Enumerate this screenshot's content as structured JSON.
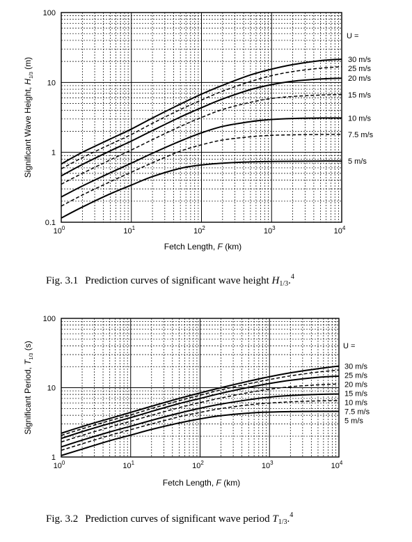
{
  "chart_data": [
    {
      "type": "line",
      "figure_label": "Fig. 3.1",
      "caption": {
        "text": "Prediction curves of significant wave height ",
        "symbol": "H",
        "subscript": "1/3",
        "suffix": ".",
        "superscript": "4"
      },
      "ylabel": {
        "text": "Significant Wave Height, ",
        "symbol": "H",
        "subscript": "1/3",
        "unit": " (m)"
      },
      "xlabel": {
        "text": "Fetch Length, ",
        "symbol": "F",
        "unit": " (km)"
      },
      "x_scale": "log",
      "y_scale": "log",
      "xlim": [
        1,
        10000
      ],
      "ylim": [
        0.1,
        100
      ],
      "x_tick_base": "10",
      "x_tick_exponents": [
        "0",
        "1",
        "2",
        "3",
        "4"
      ],
      "y_ticks": [
        {
          "value": 0.1,
          "label": "0.1"
        },
        {
          "value": 1,
          "label": "1"
        },
        {
          "value": 10,
          "label": "10"
        },
        {
          "value": 100,
          "label": "100"
        }
      ],
      "grid": true,
      "legend_header": "U =",
      "x": [
        1,
        2,
        5,
        10,
        20,
        50,
        100,
        200,
        500,
        1000,
        2000,
        5000,
        10000
      ],
      "series": [
        {
          "name": "30 m/s",
          "style": "solid",
          "values": [
            0.68,
            1.0,
            1.55,
            2.15,
            3.1,
            4.9,
            6.8,
            9.1,
            12.8,
            15.5,
            18.0,
            20.5,
            21.5
          ]
        },
        {
          "name": "25 m/s",
          "style": "dashed",
          "values": [
            0.58,
            0.84,
            1.3,
            1.8,
            2.6,
            4.1,
            5.6,
            7.5,
            10.3,
            12.5,
            14.3,
            16.0,
            16.8
          ]
        },
        {
          "name": "20 m/s",
          "style": "solid",
          "values": [
            0.46,
            0.67,
            1.05,
            1.45,
            2.05,
            3.2,
            4.35,
            5.8,
            7.9,
            9.3,
            10.4,
            11.2,
            11.5
          ]
        },
        {
          "name": "15 m/s",
          "style": "dashed",
          "values": [
            0.35,
            0.5,
            0.78,
            1.08,
            1.52,
            2.35,
            3.15,
            4.1,
            5.2,
            5.9,
            6.3,
            6.6,
            6.7
          ]
        },
        {
          "name": "10 m/s",
          "style": "solid",
          "values": [
            0.23,
            0.33,
            0.51,
            0.7,
            0.97,
            1.45,
            1.9,
            2.35,
            2.75,
            2.95,
            3.05,
            3.1,
            3.1
          ]
        },
        {
          "name": "7.5 m/s",
          "style": "dashed",
          "values": [
            0.17,
            0.245,
            0.38,
            0.52,
            0.71,
            1.04,
            1.28,
            1.5,
            1.67,
            1.75,
            1.78,
            1.8,
            1.8
          ]
        },
        {
          "name": "5 m/s",
          "style": "solid",
          "values": [
            0.115,
            0.165,
            0.255,
            0.34,
            0.45,
            0.59,
            0.66,
            0.7,
            0.73,
            0.74,
            0.745,
            0.75,
            0.75
          ]
        }
      ]
    },
    {
      "type": "line",
      "figure_label": "Fig. 3.2",
      "caption": {
        "text": "Prediction curves of significant wave period ",
        "symbol": "T",
        "subscript": "1/3",
        "suffix": ".",
        "superscript": "4"
      },
      "ylabel": {
        "text": "Significant Period, ",
        "symbol": "T",
        "subscript": "1/3",
        "unit": " (s)"
      },
      "xlabel": {
        "text": "Fetch Length, ",
        "symbol": "F",
        "unit": " (km)"
      },
      "x_scale": "log",
      "y_scale": "log",
      "xlim": [
        1,
        10000
      ],
      "ylim": [
        1,
        100
      ],
      "x_tick_base": "10",
      "x_tick_exponents": [
        "0",
        "1",
        "2",
        "3",
        "4"
      ],
      "y_ticks": [
        {
          "value": 1,
          "label": "1"
        },
        {
          "value": 10,
          "label": "10"
        },
        {
          "value": 100,
          "label": "100"
        }
      ],
      "grid": true,
      "legend_header": "U =",
      "x": [
        1,
        2,
        5,
        10,
        20,
        50,
        100,
        200,
        500,
        1000,
        2000,
        5000,
        10000
      ],
      "series": [
        {
          "name": "30 m/s",
          "style": "solid",
          "values": [
            2.2,
            2.75,
            3.6,
            4.4,
            5.4,
            7.0,
            8.4,
            10.0,
            12.4,
            14.4,
            16.4,
            18.8,
            20.5
          ]
        },
        {
          "name": "25 m/s",
          "style": "dashed",
          "values": [
            2.05,
            2.55,
            3.35,
            4.05,
            5.0,
            6.5,
            7.8,
            9.3,
            11.4,
            13.1,
            14.8,
            16.8,
            18.0
          ]
        },
        {
          "name": "20 m/s",
          "style": "solid",
          "values": [
            1.85,
            2.32,
            3.05,
            3.7,
            4.55,
            5.9,
            7.0,
            8.3,
            10.1,
            11.5,
            12.8,
            14.1,
            14.7
          ]
        },
        {
          "name": "15 m/s",
          "style": "dashed",
          "values": [
            1.65,
            2.05,
            2.7,
            3.28,
            4.0,
            5.15,
            6.1,
            7.1,
            8.5,
            9.5,
            10.3,
            11.0,
            11.3
          ]
        },
        {
          "name": "10 m/s",
          "style": "solid",
          "values": [
            1.4,
            1.75,
            2.3,
            2.78,
            3.38,
            4.3,
            5.05,
            5.8,
            6.7,
            7.3,
            7.7,
            8.0,
            8.1
          ]
        },
        {
          "name": "7.5 m/s",
          "style": "dashed",
          "values": [
            1.25,
            1.55,
            2.05,
            2.48,
            3.0,
            3.8,
            4.4,
            5.0,
            5.65,
            6.0,
            6.25,
            6.45,
            6.5
          ]
        },
        {
          "name": "5 m/s",
          "style": "solid",
          "values": [
            1.05,
            1.3,
            1.72,
            2.07,
            2.5,
            3.1,
            3.55,
            3.95,
            4.3,
            4.45,
            4.52,
            4.55,
            4.55
          ]
        }
      ]
    }
  ]
}
